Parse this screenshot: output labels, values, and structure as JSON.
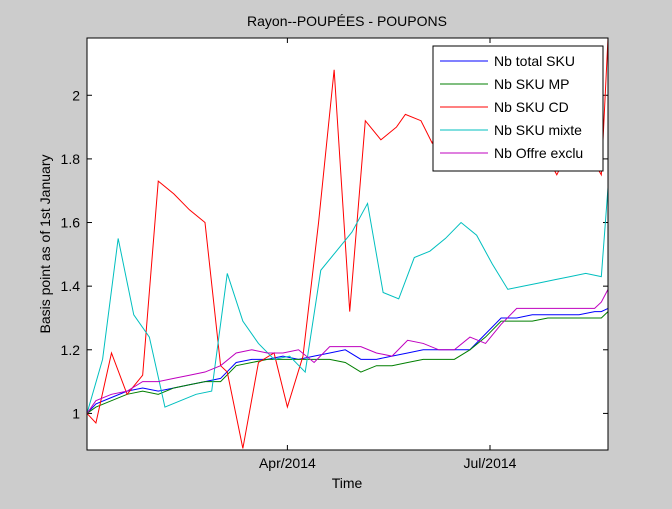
{
  "chart_data": {
    "type": "line",
    "title": "Rayon--POUPÉES - POUPONS",
    "xlabel": "Time",
    "ylabel": "Basis point as of 1st January",
    "x_axis": {
      "type": "date",
      "range": [
        "2014-01-01",
        "2014-08-23"
      ],
      "ticks": [
        {
          "value": "2014-04-01",
          "label": "Apr/2014"
        },
        {
          "value": "2014-07-01",
          "label": "Jul/2014"
        }
      ]
    },
    "y_axis": {
      "range": [
        0.885,
        2.18
      ],
      "ticks": [
        {
          "value": 1,
          "label": "1"
        },
        {
          "value": 1.2,
          "label": "1.2"
        },
        {
          "value": 1.4,
          "label": "1.4"
        },
        {
          "value": 1.6,
          "label": "1.6"
        },
        {
          "value": 1.8,
          "label": "1.8"
        },
        {
          "value": 2,
          "label": "2"
        }
      ]
    },
    "grid": false,
    "legend_position": "top-right",
    "series": [
      {
        "name": "Nb total SKU",
        "color": "#0000ff",
        "x": [
          "2014-01-01",
          "2014-01-05",
          "2014-01-12",
          "2014-01-19",
          "2014-01-26",
          "2014-02-02",
          "2014-02-09",
          "2014-02-16",
          "2014-02-23",
          "2014-03-02",
          "2014-03-09",
          "2014-03-16",
          "2014-03-23",
          "2014-03-30",
          "2014-04-06",
          "2014-04-13",
          "2014-04-20",
          "2014-04-27",
          "2014-05-04",
          "2014-05-11",
          "2014-05-18",
          "2014-05-25",
          "2014-06-01",
          "2014-06-08",
          "2014-06-15",
          "2014-06-22",
          "2014-06-29",
          "2014-07-06",
          "2014-07-13",
          "2014-07-20",
          "2014-07-27",
          "2014-08-03",
          "2014-08-10",
          "2014-08-17",
          "2014-08-20",
          "2014-08-23"
        ],
        "y": [
          1.0,
          1.03,
          1.05,
          1.07,
          1.08,
          1.07,
          1.08,
          1.09,
          1.1,
          1.11,
          1.16,
          1.17,
          1.17,
          1.18,
          1.17,
          1.18,
          1.19,
          1.2,
          1.17,
          1.17,
          1.18,
          1.19,
          1.2,
          1.2,
          1.2,
          1.2,
          1.25,
          1.3,
          1.3,
          1.31,
          1.31,
          1.31,
          1.31,
          1.32,
          1.32,
          1.33
        ]
      },
      {
        "name": "Nb SKU MP",
        "color": "#007f00",
        "x": [
          "2014-01-01",
          "2014-01-05",
          "2014-01-12",
          "2014-01-19",
          "2014-01-26",
          "2014-02-02",
          "2014-02-09",
          "2014-02-16",
          "2014-02-23",
          "2014-03-02",
          "2014-03-09",
          "2014-03-16",
          "2014-03-23",
          "2014-03-30",
          "2014-04-06",
          "2014-04-13",
          "2014-04-20",
          "2014-04-27",
          "2014-05-04",
          "2014-05-11",
          "2014-05-18",
          "2014-05-25",
          "2014-06-01",
          "2014-06-08",
          "2014-06-15",
          "2014-06-22",
          "2014-06-29",
          "2014-07-06",
          "2014-07-13",
          "2014-07-20",
          "2014-07-27",
          "2014-08-03",
          "2014-08-10",
          "2014-08-17",
          "2014-08-20",
          "2014-08-23"
        ],
        "y": [
          1.0,
          1.02,
          1.04,
          1.06,
          1.07,
          1.06,
          1.08,
          1.09,
          1.1,
          1.1,
          1.15,
          1.16,
          1.17,
          1.17,
          1.17,
          1.17,
          1.17,
          1.16,
          1.13,
          1.15,
          1.15,
          1.16,
          1.17,
          1.17,
          1.17,
          1.2,
          1.24,
          1.29,
          1.29,
          1.29,
          1.3,
          1.3,
          1.3,
          1.3,
          1.3,
          1.32
        ]
      },
      {
        "name": "Nb SKU CD",
        "color": "#ff0000",
        "x": [
          "2014-01-01",
          "2014-01-05",
          "2014-01-12",
          "2014-01-19",
          "2014-01-26",
          "2014-02-02",
          "2014-02-09",
          "2014-02-16",
          "2014-02-23",
          "2014-03-02",
          "2014-03-05",
          "2014-03-12",
          "2014-03-19",
          "2014-03-26",
          "2014-04-01",
          "2014-04-08",
          "2014-04-15",
          "2014-04-22",
          "2014-04-29",
          "2014-05-06",
          "2014-05-13",
          "2014-05-20",
          "2014-05-24",
          "2014-05-31",
          "2014-06-05",
          "2014-06-12",
          "2014-06-19",
          "2014-06-26",
          "2014-07-03",
          "2014-07-10",
          "2014-07-17",
          "2014-07-24",
          "2014-07-31",
          "2014-08-07",
          "2014-08-14",
          "2014-08-20",
          "2014-08-23"
        ],
        "y": [
          1.0,
          0.97,
          1.19,
          1.06,
          1.12,
          1.73,
          1.69,
          1.64,
          1.6,
          1.15,
          1.13,
          0.89,
          1.16,
          1.19,
          1.02,
          1.18,
          1.6,
          2.08,
          1.32,
          1.92,
          1.86,
          1.9,
          1.94,
          1.92,
          1.85,
          1.95,
          1.98,
          1.93,
          1.84,
          1.79,
          1.85,
          1.84,
          1.75,
          1.85,
          1.82,
          1.75,
          2.18
        ]
      },
      {
        "name": "Nb SKU mixte",
        "color": "#00bfbf",
        "x": [
          "2014-01-01",
          "2014-01-08",
          "2014-01-15",
          "2014-01-22",
          "2014-01-29",
          "2014-02-05",
          "2014-02-12",
          "2014-02-19",
          "2014-02-26",
          "2014-03-05",
          "2014-03-12",
          "2014-03-19",
          "2014-03-26",
          "2014-04-02",
          "2014-04-09",
          "2014-04-16",
          "2014-04-23",
          "2014-04-30",
          "2014-05-07",
          "2014-05-14",
          "2014-05-21",
          "2014-05-28",
          "2014-06-04",
          "2014-06-11",
          "2014-06-18",
          "2014-06-25",
          "2014-07-02",
          "2014-07-09",
          "2014-07-16",
          "2014-07-23",
          "2014-07-30",
          "2014-08-06",
          "2014-08-13",
          "2014-08-20",
          "2014-08-23"
        ],
        "y": [
          1.0,
          1.17,
          1.55,
          1.31,
          1.24,
          1.02,
          1.04,
          1.06,
          1.07,
          1.44,
          1.29,
          1.22,
          1.17,
          1.18,
          1.13,
          1.45,
          1.51,
          1.57,
          1.66,
          1.38,
          1.36,
          1.49,
          1.51,
          1.55,
          1.6,
          1.56,
          1.47,
          1.39,
          1.4,
          1.41,
          1.42,
          1.43,
          1.44,
          1.43,
          1.71
        ]
      },
      {
        "name": "Nb Offre exclu",
        "color": "#bf00bf",
        "x": [
          "2014-01-01",
          "2014-01-05",
          "2014-01-12",
          "2014-01-19",
          "2014-01-26",
          "2014-02-02",
          "2014-02-09",
          "2014-02-16",
          "2014-02-23",
          "2014-03-02",
          "2014-03-09",
          "2014-03-16",
          "2014-03-23",
          "2014-03-30",
          "2014-04-06",
          "2014-04-13",
          "2014-04-20",
          "2014-04-27",
          "2014-05-04",
          "2014-05-11",
          "2014-05-18",
          "2014-05-25",
          "2014-06-01",
          "2014-06-08",
          "2014-06-15",
          "2014-06-22",
          "2014-06-29",
          "2014-07-06",
          "2014-07-13",
          "2014-07-20",
          "2014-07-27",
          "2014-08-03",
          "2014-08-10",
          "2014-08-17",
          "2014-08-20",
          "2014-08-23"
        ],
        "y": [
          1.0,
          1.04,
          1.06,
          1.07,
          1.1,
          1.1,
          1.11,
          1.12,
          1.13,
          1.15,
          1.19,
          1.2,
          1.19,
          1.19,
          1.2,
          1.16,
          1.21,
          1.21,
          1.21,
          1.19,
          1.18,
          1.23,
          1.22,
          1.2,
          1.2,
          1.24,
          1.22,
          1.28,
          1.33,
          1.33,
          1.33,
          1.33,
          1.33,
          1.33,
          1.35,
          1.39
        ]
      }
    ]
  }
}
